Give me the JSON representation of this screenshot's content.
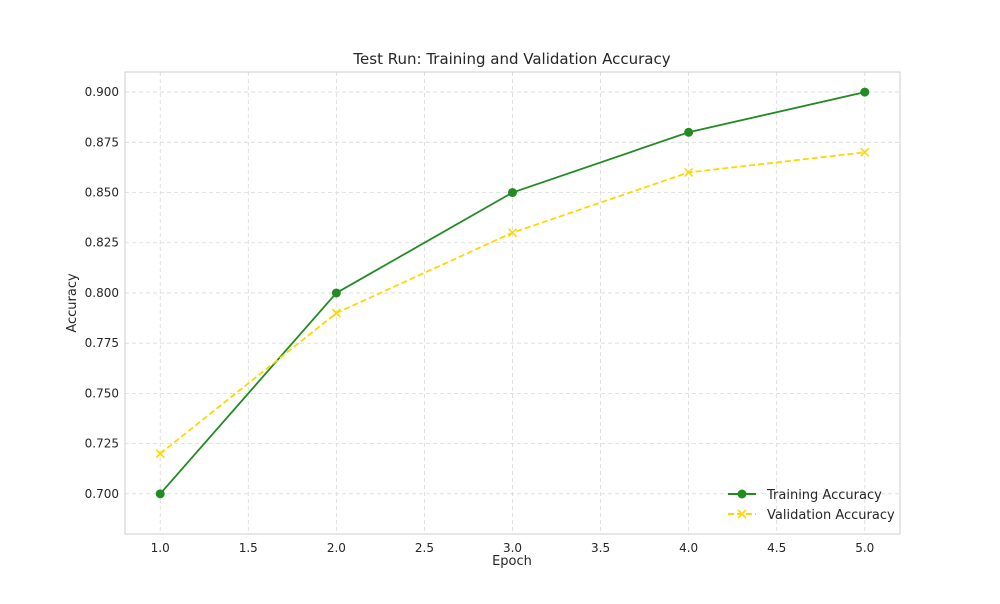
{
  "chart_data": {
    "type": "line",
    "title": "Test Run: Training and Validation Accuracy",
    "xlabel": "Epoch",
    "ylabel": "Accuracy",
    "xlim": [
      0.8,
      5.2
    ],
    "ylim": [
      0.68,
      0.91
    ],
    "xticks": [
      1.0,
      1.5,
      2.0,
      2.5,
      3.0,
      3.5,
      4.0,
      4.5,
      5.0
    ],
    "xtick_labels": [
      "1.0",
      "1.5",
      "2.0",
      "2.5",
      "3.0",
      "3.5",
      "4.0",
      "4.5",
      "5.0"
    ],
    "yticks": [
      0.7,
      0.725,
      0.75,
      0.775,
      0.8,
      0.825,
      0.85,
      0.875,
      0.9
    ],
    "ytick_labels": [
      "0.700",
      "0.725",
      "0.750",
      "0.775",
      "0.800",
      "0.825",
      "0.850",
      "0.875",
      "0.900"
    ],
    "grid": true,
    "legend_position": "lower-right",
    "x": [
      1,
      2,
      3,
      4,
      5
    ],
    "series": [
      {
        "name": "Training Accuracy",
        "values": [
          0.7,
          0.8,
          0.85,
          0.88,
          0.9
        ],
        "color": "#228b22",
        "marker": "circle",
        "line_style": "solid"
      },
      {
        "name": "Validation Accuracy",
        "values": [
          0.72,
          0.79,
          0.83,
          0.86,
          0.87
        ],
        "color": "#ffd700",
        "marker": "x",
        "line_style": "dashed"
      }
    ]
  }
}
